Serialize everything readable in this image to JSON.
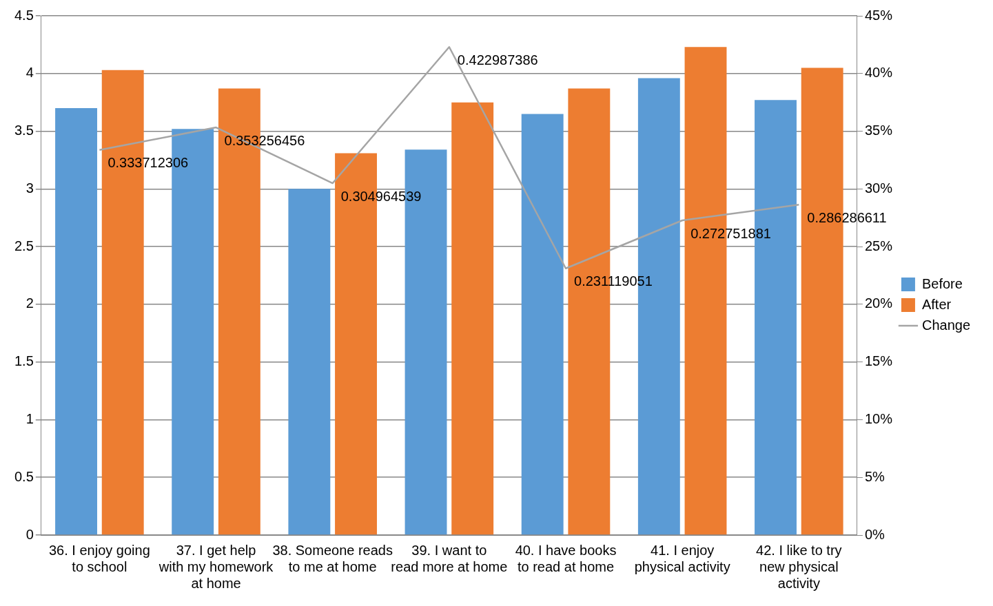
{
  "chart_data": {
    "type": "bar",
    "categories": [
      "36. I enjoy going to school",
      "37. I get help with my homework at home",
      "38. Someone reads to me at home",
      "39. I want to read more at home",
      "40. I have books to read at home",
      "41. I enjoy physical activity",
      "42. I like to try new physical activity"
    ],
    "series": [
      {
        "name": "Before",
        "color": "#5b9bd5",
        "values": [
          3.7,
          3.52,
          3.0,
          3.34,
          3.65,
          3.96,
          3.77
        ]
      },
      {
        "name": "After",
        "color": "#ed7d31",
        "values": [
          4.03,
          3.87,
          3.31,
          3.75,
          3.87,
          4.23,
          4.05
        ]
      },
      {
        "name": "Change",
        "type": "line",
        "axis": "y2",
        "color": "#a5a5a5",
        "values": [
          0.333712306,
          0.353256456,
          0.304964539,
          0.422987386,
          0.231119051,
          0.272751881,
          0.286286611
        ],
        "value_labels": [
          "0.333712306",
          "0.353256456",
          "0.304964539",
          "0.422987386",
          "0.231119051",
          "0.272751881",
          "0.286286611"
        ]
      }
    ],
    "ylim": [
      0,
      4.5
    ],
    "yticks": [
      0,
      0.5,
      1,
      1.5,
      2,
      2.5,
      3,
      3.5,
      4,
      4.5
    ],
    "y2lim": [
      0,
      0.45
    ],
    "y2ticks": [
      {
        "value": 0,
        "label": "0%"
      },
      {
        "value": 0.05,
        "label": "5%"
      },
      {
        "value": 0.1,
        "label": "10%"
      },
      {
        "value": 0.15,
        "label": "15%"
      },
      {
        "value": 0.2,
        "label": "20%"
      },
      {
        "value": 0.25,
        "label": "25%"
      },
      {
        "value": 0.3,
        "label": "30%"
      },
      {
        "value": 0.35,
        "label": "35%"
      },
      {
        "value": 0.4,
        "label": "40%"
      },
      {
        "value": 0.45,
        "label": "45%"
      }
    ],
    "grid": "y",
    "legend": "right",
    "marker": "none",
    "line_style": "solid"
  }
}
